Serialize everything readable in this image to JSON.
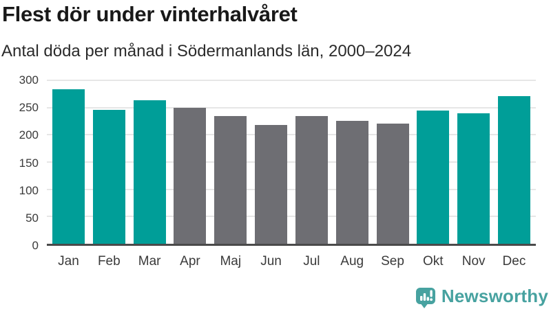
{
  "header": {
    "title": "Flest dör under vinterhalvåret",
    "subtitle": "Antal döda per månad i Södermanlands län, 2000–2024"
  },
  "chart_data": {
    "type": "bar",
    "title": "Flest dör under vinterhalvåret",
    "subtitle": "Antal döda per månad i Södermanlands län, 2000–2024",
    "categories": [
      "Jan",
      "Feb",
      "Mar",
      "Apr",
      "Maj",
      "Jun",
      "Jul",
      "Aug",
      "Sep",
      "Okt",
      "Nov",
      "Dec"
    ],
    "values": [
      284,
      246,
      264,
      250,
      235,
      218,
      234,
      226,
      221,
      244,
      240,
      271
    ],
    "highlight_categories": [
      "Jan",
      "Feb",
      "Mar",
      "Okt",
      "Nov",
      "Dec"
    ],
    "xlabel": "",
    "ylabel": "",
    "ylim": [
      0,
      300
    ],
    "yticks": [
      0,
      50,
      100,
      150,
      200,
      250,
      300
    ],
    "grid": "horizontal",
    "legend": "none",
    "colors": {
      "highlight": "#009e98",
      "base": "#6e6e73",
      "gridline": "#e6e6e6",
      "axis": "#4a4a4a"
    }
  },
  "footer": {
    "brand": "Newsworthy",
    "brand_color": "#47a2a0",
    "logo_icon": "bar-chart-speech-bubble-icon"
  }
}
